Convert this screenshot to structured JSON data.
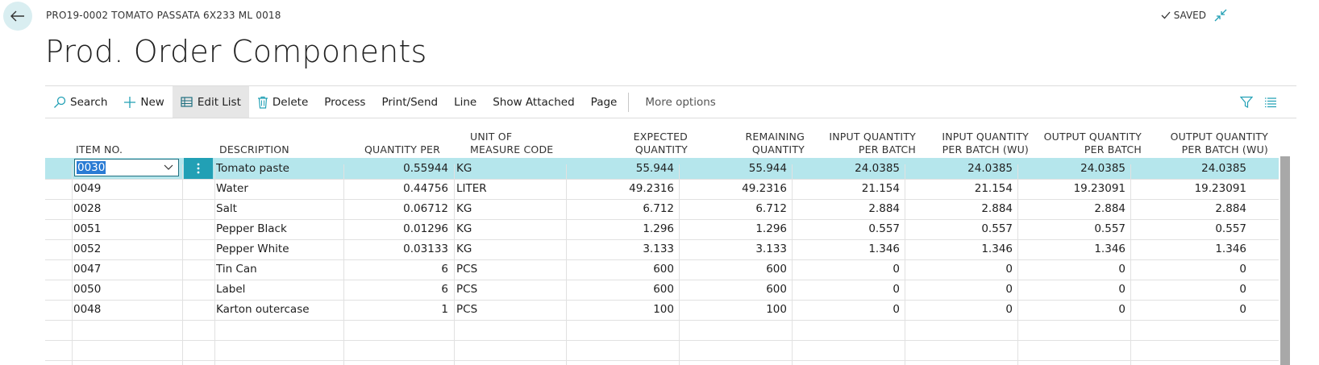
{
  "header": {
    "breadcrumb": "PRO19-0002 TOMATO PASSATA 6X233 ML 0018",
    "saved_label": "SAVED",
    "title": "Prod. Order Components"
  },
  "toolbar": {
    "search": "Search",
    "new": "New",
    "edit_list": "Edit List",
    "delete": "Delete",
    "process": "Process",
    "print_send": "Print/Send",
    "line": "Line",
    "show_attached": "Show Attached",
    "page": "Page",
    "more_options": "More options"
  },
  "columns": {
    "item_no": "ITEM NO.",
    "description": "DESCRIPTION",
    "quantity_per": "QUANTITY PER",
    "uom_1": "UNIT OF",
    "uom_2": "MEASURE CODE",
    "expected_1": "EXPECTED",
    "expected_2": "QUANTITY",
    "remaining_1": "REMAINING",
    "remaining_2": "QUANTITY",
    "input_batch_1": "INPUT QUANTITY",
    "input_batch_2": "PER BATCH",
    "input_batch_wu_1": "INPUT QUANTITY",
    "input_batch_wu_2": "PER BATCH (WU)",
    "output_batch_1": "OUTPUT QUANTITY",
    "output_batch_2": "PER BATCH",
    "output_batch_wu_1": "OUTPUT QUANTITY",
    "output_batch_wu_2": "PER BATCH (WU)"
  },
  "rows": [
    {
      "item_no": "0030",
      "description": "Tomato paste",
      "quantity_per": "0.55944",
      "uom": "KG",
      "expected": "55.944",
      "remaining": "55.944",
      "input_batch": "24.0385",
      "input_batch_wu": "24.0385",
      "output_batch": "24.0385",
      "output_batch_wu": "24.0385"
    },
    {
      "item_no": "0049",
      "description": "Water",
      "quantity_per": "0.44756",
      "uom": "LITER",
      "expected": "49.2316",
      "remaining": "49.2316",
      "input_batch": "21.154",
      "input_batch_wu": "21.154",
      "output_batch": "19.23091",
      "output_batch_wu": "19.23091"
    },
    {
      "item_no": "0028",
      "description": "Salt",
      "quantity_per": "0.06712",
      "uom": "KG",
      "expected": "6.712",
      "remaining": "6.712",
      "input_batch": "2.884",
      "input_batch_wu": "2.884",
      "output_batch": "2.884",
      "output_batch_wu": "2.884"
    },
    {
      "item_no": "0051",
      "description": "Pepper Black",
      "quantity_per": "0.01296",
      "uom": "KG",
      "expected": "1.296",
      "remaining": "1.296",
      "input_batch": "0.557",
      "input_batch_wu": "0.557",
      "output_batch": "0.557",
      "output_batch_wu": "0.557"
    },
    {
      "item_no": "0052",
      "description": "Pepper White",
      "quantity_per": "0.03133",
      "uom": "KG",
      "expected": "3.133",
      "remaining": "3.133",
      "input_batch": "1.346",
      "input_batch_wu": "1.346",
      "output_batch": "1.346",
      "output_batch_wu": "1.346"
    },
    {
      "item_no": "0047",
      "description": "Tin Can",
      "quantity_per": "6",
      "uom": "PCS",
      "expected": "600",
      "remaining": "600",
      "input_batch": "0",
      "input_batch_wu": "0",
      "output_batch": "0",
      "output_batch_wu": "0"
    },
    {
      "item_no": "0050",
      "description": "Label",
      "quantity_per": "6",
      "uom": "PCS",
      "expected": "600",
      "remaining": "600",
      "input_batch": "0",
      "input_batch_wu": "0",
      "output_batch": "0",
      "output_batch_wu": "0"
    },
    {
      "item_no": "0048",
      "description": "Karton outercase",
      "quantity_per": "1",
      "uom": "PCS",
      "expected": "100",
      "remaining": "100",
      "input_batch": "0",
      "input_batch_wu": "0",
      "output_batch": "0",
      "output_batch_wu": "0"
    }
  ],
  "selected_row": 0,
  "colors": {
    "accent": "#22a0b5",
    "selected_row": "#b5e6ec",
    "back_button_bg": "#d9eef1",
    "selection_highlight": "#2a7bd4"
  },
  "icons": {
    "back": "back-arrow-icon",
    "saved": "checkmark-icon",
    "collapse": "collapse-icon",
    "search": "search-icon",
    "new": "plus-icon",
    "edit_list": "edit-list-icon",
    "delete": "trash-icon",
    "filter": "filter-icon",
    "list_view": "list-view-icon",
    "dropdown": "chevron-down-icon",
    "row_actions": "kebab-icon"
  }
}
